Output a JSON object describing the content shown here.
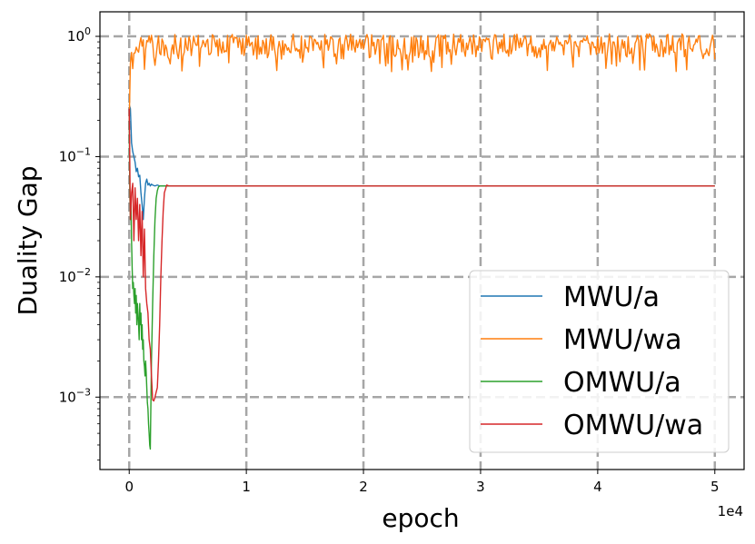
{
  "chart_data": {
    "type": "line",
    "xlabel": "epoch",
    "ylabel": "Duality Gap",
    "x_offset_label": "1e4",
    "xscale": "linear",
    "yscale": "log",
    "xlim": [
      -2500,
      52500
    ],
    "ylim": [
      0.00025,
      1.6
    ],
    "grid": true,
    "legend_position": "lower-right",
    "x_ticks": [
      0,
      10000,
      20000,
      30000,
      40000,
      50000
    ],
    "x_tick_labels": [
      "0",
      "1",
      "2",
      "3",
      "4",
      "5"
    ],
    "y_ticks": [
      0.001,
      0.01,
      0.1,
      1
    ],
    "y_tick_labels": [
      {
        "base": "10",
        "exp": "−3"
      },
      {
        "base": "10",
        "exp": "−2"
      },
      {
        "base": "10",
        "exp": "−1"
      },
      {
        "base": "10",
        "exp": "0"
      }
    ],
    "series": [
      {
        "name": "MWU/a",
        "color": "#1f77b4",
        "x": [
          0,
          100,
          200,
          300,
          400,
          500,
          600,
          700,
          800,
          900,
          1000,
          1100,
          1200,
          1300,
          1400,
          1500,
          1600,
          1700,
          1800,
          1900,
          2000,
          2200,
          2400,
          2600,
          2800,
          3000,
          3500,
          4000,
          10000,
          50000
        ],
        "y": [
          0.27,
          0.25,
          0.13,
          0.11,
          0.1,
          0.09,
          0.075,
          0.08,
          0.068,
          0.07,
          0.05,
          0.04,
          0.03,
          0.045,
          0.06,
          0.065,
          0.058,
          0.06,
          0.057,
          0.059,
          0.058,
          0.057,
          0.058,
          0.057,
          0.057,
          0.057,
          0.057,
          0.057,
          0.057,
          0.057
        ]
      },
      {
        "name": "MWU/wa",
        "color": "#ff7f0e",
        "generated": "noisy",
        "x_start": 0,
        "x_end": 50000,
        "center": 0.82,
        "min": 0.5,
        "max": 1.05,
        "initial_low": 0.2
      },
      {
        "name": "OMWU/a",
        "color": "#2ca02c",
        "x": [
          0,
          50,
          100,
          150,
          200,
          250,
          300,
          350,
          400,
          450,
          500,
          550,
          600,
          650,
          700,
          750,
          800,
          850,
          900,
          950,
          1000,
          1050,
          1100,
          1150,
          1200,
          1250,
          1300,
          1350,
          1400,
          1450,
          1500,
          1550,
          1600,
          1650,
          1700,
          1750,
          1800,
          1900,
          2000,
          2100,
          2200,
          2300,
          2400,
          2500,
          2600,
          2700,
          2800,
          3000,
          3500,
          50000
        ],
        "y": [
          0.2,
          0.05,
          0.03,
          0.04,
          0.02,
          0.012,
          0.008,
          0.009,
          0.007,
          0.006,
          0.008,
          0.005,
          0.007,
          0.004,
          0.006,
          0.005,
          0.004,
          0.003,
          0.006,
          0.004,
          0.005,
          0.003,
          0.004,
          0.0025,
          0.003,
          0.002,
          0.0018,
          0.0015,
          0.002,
          0.0016,
          0.0012,
          0.0009,
          0.0008,
          0.0006,
          0.0005,
          0.0004,
          0.00037,
          0.002,
          0.006,
          0.015,
          0.03,
          0.045,
          0.052,
          0.056,
          0.057,
          0.057,
          0.057,
          0.057,
          0.057,
          0.057
        ]
      },
      {
        "name": "OMWU/wa",
        "color": "#d62728",
        "x": [
          0,
          100,
          200,
          300,
          400,
          500,
          600,
          700,
          800,
          900,
          1000,
          1100,
          1200,
          1300,
          1400,
          1500,
          1600,
          1700,
          1800,
          1900,
          2000,
          2100,
          2200,
          2300,
          2400,
          2500,
          2600,
          2700,
          2800,
          2900,
          3000,
          3200,
          3400,
          3600,
          4000,
          5000,
          50000
        ],
        "y": [
          0.25,
          0.03,
          0.05,
          0.06,
          0.02,
          0.055,
          0.03,
          0.045,
          0.02,
          0.04,
          0.015,
          0.035,
          0.01,
          0.025,
          0.008,
          0.006,
          0.005,
          0.003,
          0.0025,
          0.0015,
          0.00095,
          0.00093,
          0.001,
          0.0011,
          0.0012,
          0.002,
          0.004,
          0.01,
          0.02,
          0.035,
          0.05,
          0.058,
          0.057,
          0.057,
          0.057,
          0.057,
          0.057
        ]
      }
    ]
  }
}
